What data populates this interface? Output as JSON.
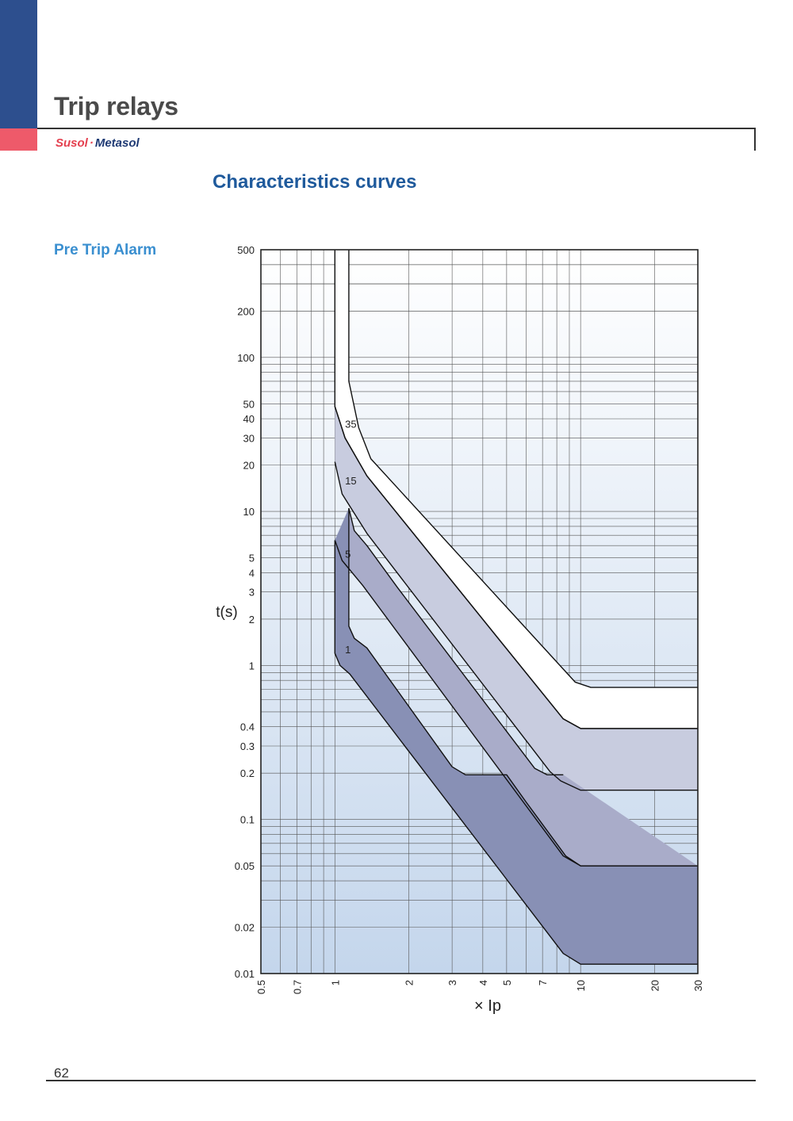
{
  "header": {
    "title": "Trip relays",
    "brand_a": "Susol",
    "brand_dot": "·",
    "brand_b": "Metasol",
    "accent_blue": "#2d4f8e",
    "accent_red": "#ee5a6a"
  },
  "section": {
    "title": "Characteristics curves",
    "subtitle": "Pre Trip Alarm"
  },
  "footer": {
    "page_number": "62"
  },
  "chart_data": {
    "type": "area",
    "title": "",
    "xlabel": "× Ip",
    "ylabel": "t(s)",
    "x_scale": "log",
    "y_scale": "log",
    "xlim": [
      0.5,
      30
    ],
    "ylim": [
      0.01,
      500
    ],
    "grid": true,
    "x_ticks": [
      {
        "v": 0.5,
        "label": "0.5"
      },
      {
        "v": 0.7,
        "label": "0.7"
      },
      {
        "v": 1,
        "label": "1"
      },
      {
        "v": 2,
        "label": "2"
      },
      {
        "v": 3,
        "label": "3"
      },
      {
        "v": 4,
        "label": "4"
      },
      {
        "v": 5,
        "label": "5"
      },
      {
        "v": 7,
        "label": "7"
      },
      {
        "v": 10,
        "label": "10"
      },
      {
        "v": 20,
        "label": "20"
      },
      {
        "v": 30,
        "label": "30"
      }
    ],
    "y_ticks": [
      {
        "v": 500,
        "label": "500"
      },
      {
        "v": 200,
        "label": "200"
      },
      {
        "v": 100,
        "label": "100"
      },
      {
        "v": 50,
        "label": "50"
      },
      {
        "v": 40,
        "label": "40"
      },
      {
        "v": 30,
        "label": "30"
      },
      {
        "v": 20,
        "label": "20"
      },
      {
        "v": 10,
        "label": "10"
      },
      {
        "v": 5,
        "label": "5"
      },
      {
        "v": 4,
        "label": "4"
      },
      {
        "v": 3,
        "label": "3"
      },
      {
        "v": 2,
        "label": "2"
      },
      {
        "v": 1,
        "label": "1"
      },
      {
        "v": 0.4,
        "label": "0.4"
      },
      {
        "v": 0.3,
        "label": "0.3"
      },
      {
        "v": 0.2,
        "label": "0.2"
      },
      {
        "v": 0.1,
        "label": "0.1"
      },
      {
        "v": 0.05,
        "label": "0.05"
      },
      {
        "v": 0.02,
        "label": "0.02"
      },
      {
        "v": 0.01,
        "label": "0.01"
      }
    ],
    "series": [
      {
        "name": "35",
        "fill": "#ffffff",
        "label_at": [
          1.1,
          35
        ],
        "upper": [
          [
            1.14,
            500
          ],
          [
            1.14,
            70
          ],
          [
            1.25,
            35
          ],
          [
            1.4,
            22
          ],
          [
            9.5,
            0.78
          ],
          [
            11,
            0.72
          ],
          [
            30,
            0.72
          ]
        ],
        "lower": [
          [
            1,
            500
          ],
          [
            1,
            48
          ],
          [
            1.1,
            30
          ],
          [
            1.35,
            17
          ],
          [
            8.5,
            0.45
          ],
          [
            10,
            0.39
          ],
          [
            30,
            0.39
          ]
        ]
      },
      {
        "name": "15",
        "fill": "#c8ccdf",
        "label_at": [
          1.1,
          15
        ],
        "upper": [
          [
            1,
            48
          ],
          [
            1.1,
            30
          ],
          [
            1.35,
            17
          ],
          [
            8.5,
            0.45
          ],
          [
            10,
            0.39
          ],
          [
            30,
            0.39
          ]
        ],
        "lower": [
          [
            1,
            21
          ],
          [
            1.07,
            13
          ],
          [
            1.35,
            7.2
          ],
          [
            7.5,
            0.205
          ],
          [
            8.3,
            0.178
          ],
          [
            10,
            0.155
          ],
          [
            30,
            0.155
          ]
        ]
      },
      {
        "name": "5",
        "fill": "#a9acc9",
        "label_at": [
          1.1,
          5
        ],
        "upper": [
          [
            1.14,
            10.5
          ],
          [
            1.2,
            7.5
          ],
          [
            1.35,
            6.0
          ],
          [
            1.8,
            3.2
          ],
          [
            6.5,
            0.215
          ],
          [
            7.3,
            0.195
          ],
          [
            8.5,
            0.195
          ]
        ],
        "lower": [
          [
            1,
            6.5
          ],
          [
            1.07,
            4.8
          ],
          [
            1.3,
            3.3
          ],
          [
            8.5,
            0.058
          ],
          [
            10,
            0.05
          ],
          [
            30,
            0.05
          ]
        ]
      },
      {
        "name": "1",
        "fill": "#8890b5",
        "label_at": [
          1.1,
          1.2
        ],
        "upper": [
          [
            1.14,
            10.5
          ],
          [
            1.14,
            1.8
          ],
          [
            1.2,
            1.5
          ],
          [
            1.35,
            1.3
          ],
          [
            3,
            0.22
          ],
          [
            3.4,
            0.195
          ],
          [
            5,
            0.195
          ],
          [
            6,
            0.13
          ],
          [
            8.7,
            0.058
          ],
          [
            10,
            0.05
          ],
          [
            30,
            0.05
          ]
        ],
        "lower": [
          [
            1,
            6.5
          ],
          [
            1,
            1.2
          ],
          [
            1.05,
            1.0
          ],
          [
            1.15,
            0.88
          ],
          [
            8.5,
            0.0135
          ],
          [
            10,
            0.0115
          ],
          [
            30,
            0.0115
          ]
        ]
      }
    ]
  }
}
